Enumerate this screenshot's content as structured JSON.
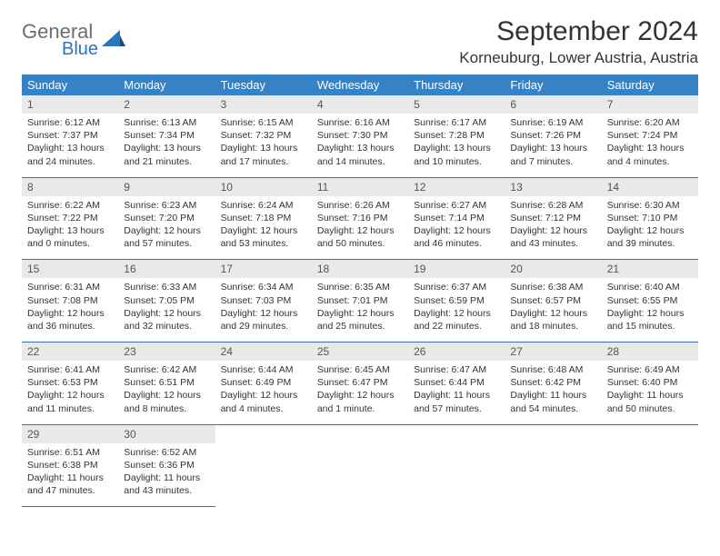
{
  "brand": {
    "line1": "General",
    "line2": "Blue"
  },
  "title": "September 2024",
  "location": "Korneuburg, Lower Austria, Austria",
  "colors": {
    "header_bg": "#3682c4",
    "header_text": "#ffffff",
    "daynum_bg": "#e9e9e9",
    "daynum_text": "#555555",
    "body_text": "#333333",
    "rule": "#3a6ea5",
    "brand_gray": "#6d6d6d",
    "brand_blue": "#2d75bb"
  },
  "weekdays": [
    "Sunday",
    "Monday",
    "Tuesday",
    "Wednesday",
    "Thursday",
    "Friday",
    "Saturday"
  ],
  "weeks": [
    [
      {
        "n": "1",
        "sunrise": "Sunrise: 6:12 AM",
        "sunset": "Sunset: 7:37 PM",
        "day1": "Daylight: 13 hours",
        "day2": "and 24 minutes."
      },
      {
        "n": "2",
        "sunrise": "Sunrise: 6:13 AM",
        "sunset": "Sunset: 7:34 PM",
        "day1": "Daylight: 13 hours",
        "day2": "and 21 minutes."
      },
      {
        "n": "3",
        "sunrise": "Sunrise: 6:15 AM",
        "sunset": "Sunset: 7:32 PM",
        "day1": "Daylight: 13 hours",
        "day2": "and 17 minutes."
      },
      {
        "n": "4",
        "sunrise": "Sunrise: 6:16 AM",
        "sunset": "Sunset: 7:30 PM",
        "day1": "Daylight: 13 hours",
        "day2": "and 14 minutes."
      },
      {
        "n": "5",
        "sunrise": "Sunrise: 6:17 AM",
        "sunset": "Sunset: 7:28 PM",
        "day1": "Daylight: 13 hours",
        "day2": "and 10 minutes."
      },
      {
        "n": "6",
        "sunrise": "Sunrise: 6:19 AM",
        "sunset": "Sunset: 7:26 PM",
        "day1": "Daylight: 13 hours",
        "day2": "and 7 minutes."
      },
      {
        "n": "7",
        "sunrise": "Sunrise: 6:20 AM",
        "sunset": "Sunset: 7:24 PM",
        "day1": "Daylight: 13 hours",
        "day2": "and 4 minutes."
      }
    ],
    [
      {
        "n": "8",
        "sunrise": "Sunrise: 6:22 AM",
        "sunset": "Sunset: 7:22 PM",
        "day1": "Daylight: 13 hours",
        "day2": "and 0 minutes."
      },
      {
        "n": "9",
        "sunrise": "Sunrise: 6:23 AM",
        "sunset": "Sunset: 7:20 PM",
        "day1": "Daylight: 12 hours",
        "day2": "and 57 minutes."
      },
      {
        "n": "10",
        "sunrise": "Sunrise: 6:24 AM",
        "sunset": "Sunset: 7:18 PM",
        "day1": "Daylight: 12 hours",
        "day2": "and 53 minutes."
      },
      {
        "n": "11",
        "sunrise": "Sunrise: 6:26 AM",
        "sunset": "Sunset: 7:16 PM",
        "day1": "Daylight: 12 hours",
        "day2": "and 50 minutes."
      },
      {
        "n": "12",
        "sunrise": "Sunrise: 6:27 AM",
        "sunset": "Sunset: 7:14 PM",
        "day1": "Daylight: 12 hours",
        "day2": "and 46 minutes."
      },
      {
        "n": "13",
        "sunrise": "Sunrise: 6:28 AM",
        "sunset": "Sunset: 7:12 PM",
        "day1": "Daylight: 12 hours",
        "day2": "and 43 minutes."
      },
      {
        "n": "14",
        "sunrise": "Sunrise: 6:30 AM",
        "sunset": "Sunset: 7:10 PM",
        "day1": "Daylight: 12 hours",
        "day2": "and 39 minutes."
      }
    ],
    [
      {
        "n": "15",
        "sunrise": "Sunrise: 6:31 AM",
        "sunset": "Sunset: 7:08 PM",
        "day1": "Daylight: 12 hours",
        "day2": "and 36 minutes."
      },
      {
        "n": "16",
        "sunrise": "Sunrise: 6:33 AM",
        "sunset": "Sunset: 7:05 PM",
        "day1": "Daylight: 12 hours",
        "day2": "and 32 minutes."
      },
      {
        "n": "17",
        "sunrise": "Sunrise: 6:34 AM",
        "sunset": "Sunset: 7:03 PM",
        "day1": "Daylight: 12 hours",
        "day2": "and 29 minutes."
      },
      {
        "n": "18",
        "sunrise": "Sunrise: 6:35 AM",
        "sunset": "Sunset: 7:01 PM",
        "day1": "Daylight: 12 hours",
        "day2": "and 25 minutes."
      },
      {
        "n": "19",
        "sunrise": "Sunrise: 6:37 AM",
        "sunset": "Sunset: 6:59 PM",
        "day1": "Daylight: 12 hours",
        "day2": "and 22 minutes."
      },
      {
        "n": "20",
        "sunrise": "Sunrise: 6:38 AM",
        "sunset": "Sunset: 6:57 PM",
        "day1": "Daylight: 12 hours",
        "day2": "and 18 minutes."
      },
      {
        "n": "21",
        "sunrise": "Sunrise: 6:40 AM",
        "sunset": "Sunset: 6:55 PM",
        "day1": "Daylight: 12 hours",
        "day2": "and 15 minutes."
      }
    ],
    [
      {
        "n": "22",
        "sunrise": "Sunrise: 6:41 AM",
        "sunset": "Sunset: 6:53 PM",
        "day1": "Daylight: 12 hours",
        "day2": "and 11 minutes."
      },
      {
        "n": "23",
        "sunrise": "Sunrise: 6:42 AM",
        "sunset": "Sunset: 6:51 PM",
        "day1": "Daylight: 12 hours",
        "day2": "and 8 minutes."
      },
      {
        "n": "24",
        "sunrise": "Sunrise: 6:44 AM",
        "sunset": "Sunset: 6:49 PM",
        "day1": "Daylight: 12 hours",
        "day2": "and 4 minutes."
      },
      {
        "n": "25",
        "sunrise": "Sunrise: 6:45 AM",
        "sunset": "Sunset: 6:47 PM",
        "day1": "Daylight: 12 hours",
        "day2": "and 1 minute."
      },
      {
        "n": "26",
        "sunrise": "Sunrise: 6:47 AM",
        "sunset": "Sunset: 6:44 PM",
        "day1": "Daylight: 11 hours",
        "day2": "and 57 minutes."
      },
      {
        "n": "27",
        "sunrise": "Sunrise: 6:48 AM",
        "sunset": "Sunset: 6:42 PM",
        "day1": "Daylight: 11 hours",
        "day2": "and 54 minutes."
      },
      {
        "n": "28",
        "sunrise": "Sunrise: 6:49 AM",
        "sunset": "Sunset: 6:40 PM",
        "day1": "Daylight: 11 hours",
        "day2": "and 50 minutes."
      }
    ],
    [
      {
        "n": "29",
        "sunrise": "Sunrise: 6:51 AM",
        "sunset": "Sunset: 6:38 PM",
        "day1": "Daylight: 11 hours",
        "day2": "and 47 minutes."
      },
      {
        "n": "30",
        "sunrise": "Sunrise: 6:52 AM",
        "sunset": "Sunset: 6:36 PM",
        "day1": "Daylight: 11 hours",
        "day2": "and 43 minutes."
      },
      null,
      null,
      null,
      null,
      null
    ]
  ]
}
